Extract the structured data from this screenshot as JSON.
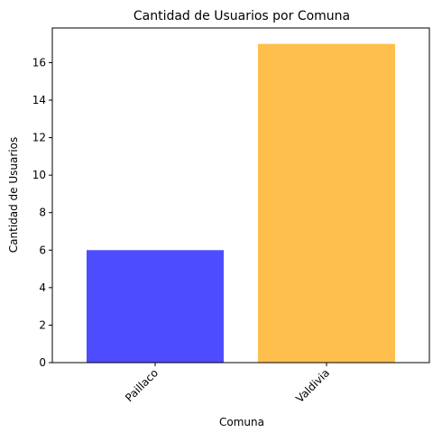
{
  "chart_data": {
    "type": "bar",
    "title": "Cantidad de Usuarios por Comuna",
    "xlabel": "Comuna",
    "ylabel": "Cantidad de Usuarios",
    "categories": [
      "Paillaco",
      "Valdivia"
    ],
    "values": [
      6,
      17
    ],
    "colors": [
      "#4d4dff",
      "#ffbf4d"
    ],
    "ylim": [
      0,
      17.85
    ],
    "yticks": [
      0,
      2,
      4,
      6,
      8,
      10,
      12,
      14,
      16
    ],
    "grid": false
  }
}
